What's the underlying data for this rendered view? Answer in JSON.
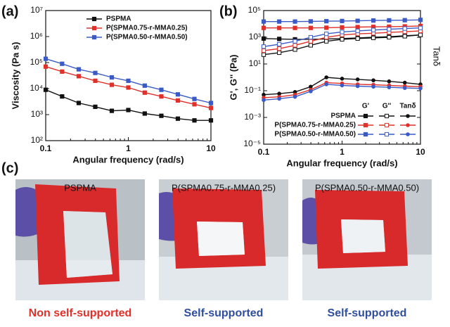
{
  "chart_data": [
    {
      "type": "line",
      "label": "(a)",
      "xlabel": "Angular frequency (rad/s)",
      "ylabel": "Viscosity (Pa s)",
      "xlog": true,
      "ylog": true,
      "xlim": [
        0.1,
        10
      ],
      "ylim": [
        100,
        10000000
      ],
      "xticks": [
        0.1,
        1,
        10
      ],
      "yticks": [
        {
          "value": 100,
          "label": "10²"
        },
        {
          "value": 1000,
          "label": "10³"
        },
        {
          "value": 10000,
          "label": "10⁴"
        },
        {
          "value": 100000,
          "label": "10⁵"
        },
        {
          "value": 1000000,
          "label": "10⁶"
        },
        {
          "value": 10000000,
          "label": "10⁷"
        }
      ],
      "legend": "upper right",
      "x": [
        0.1,
        0.158,
        0.251,
        0.398,
        0.631,
        1,
        1.58,
        2.51,
        3.98,
        6.31,
        10
      ],
      "series": [
        {
          "name": "PSPMA",
          "color": "#111111",
          "values": [
            9000,
            5000,
            2800,
            2000,
            1400,
            1500,
            1100,
            900,
            700,
            600,
            600
          ]
        },
        {
          "name": "P(SPMA0.75-r-MMA0.25)",
          "color": "#e0302a",
          "values": [
            70000,
            45000,
            30000,
            20000,
            14000,
            11000,
            7000,
            5000,
            3500,
            2500,
            1800
          ]
        },
        {
          "name": "P(SPMA0.50-r-MMA0.50)",
          "color": "#3a5bc7",
          "values": [
            140000,
            90000,
            55000,
            40000,
            27000,
            20000,
            13000,
            9000,
            6000,
            4000,
            2800
          ]
        }
      ]
    },
    {
      "type": "line",
      "label": "(b)",
      "xlabel": "Angular frequency (rad/s)",
      "ylabel": "G', G'' (Pa)",
      "y2label": "Tanδ",
      "xlog": true,
      "ylog": true,
      "xlim": [
        0.1,
        10
      ],
      "ylim": [
        1e-05,
        100000
      ],
      "xticks": [
        0.1,
        1,
        10
      ],
      "yticks": [
        {
          "value": 1e-05,
          "label": "10⁻⁵"
        },
        {
          "value": 0.001,
          "label": "10⁻³"
        },
        {
          "value": 0.1,
          "label": "10⁻¹"
        },
        {
          "value": 10,
          "label": "10¹"
        },
        {
          "value": 1000,
          "label": "10³"
        },
        {
          "value": 100000,
          "label": "10⁵"
        }
      ],
      "legend": "lower right",
      "legend_columns": [
        "G'",
        "G''",
        "Tanδ"
      ],
      "x": [
        0.1,
        0.158,
        0.251,
        0.398,
        0.631,
        1,
        1.58,
        2.51,
        3.98,
        6.31,
        10
      ],
      "series": [
        {
          "name": "PSPMA",
          "color": "#111111",
          "G_prime": [
            800,
            750,
            700,
            700,
            750,
            800,
            900,
            1000,
            1100,
            1300,
            1500
          ],
          "G_double_prime": [
            50,
            70,
            120,
            250,
            500,
            700,
            800,
            900,
            1000,
            1200,
            1500
          ],
          "tan_delta": [
            0.05,
            0.06,
            0.08,
            0.2,
            1,
            0.8,
            0.7,
            0.6,
            0.5,
            0.4,
            0.3
          ]
        },
        {
          "name": "P(SPMA0.75-r-MMA0.25)",
          "color": "#e0302a",
          "G_prime": [
            5000,
            5000,
            5000,
            5000,
            5200,
            5500,
            5800,
            6000,
            6200,
            6500,
            7000
          ],
          "G_double_prime": [
            100,
            140,
            250,
            500,
            1000,
            1500,
            1800,
            2000,
            2300,
            2600,
            3000
          ],
          "tan_delta": [
            0.03,
            0.035,
            0.05,
            0.12,
            0.4,
            0.35,
            0.3,
            0.28,
            0.25,
            0.22,
            0.2
          ]
        },
        {
          "name": "P(SPMA0.50-r-MMA0.50)",
          "color": "#3a5bc7",
          "G_prime": [
            15000,
            15000,
            15000,
            15500,
            16000,
            16500,
            17000,
            18000,
            18500,
            19000,
            20000
          ],
          "G_double_prime": [
            200,
            300,
            500,
            1000,
            1800,
            2500,
            3000,
            3500,
            4000,
            4500,
            5000
          ],
          "tan_delta": [
            0.02,
            0.025,
            0.035,
            0.09,
            0.3,
            0.25,
            0.22,
            0.2,
            0.18,
            0.16,
            0.15
          ]
        }
      ]
    }
  ],
  "panel_c": {
    "label": "(c)",
    "photos": [
      {
        "title": "PSPMA",
        "caption": "Non self-supported",
        "caption_color": "#e0302a"
      },
      {
        "title": "P(SPMA0.75-r-MMA0.25)",
        "caption": "Self-supported",
        "caption_color": "#2f4ea0"
      },
      {
        "title": "P(SPMA0.50-r-MMA0.50)",
        "caption": "Self-supported",
        "caption_color": "#2f4ea0"
      }
    ]
  }
}
